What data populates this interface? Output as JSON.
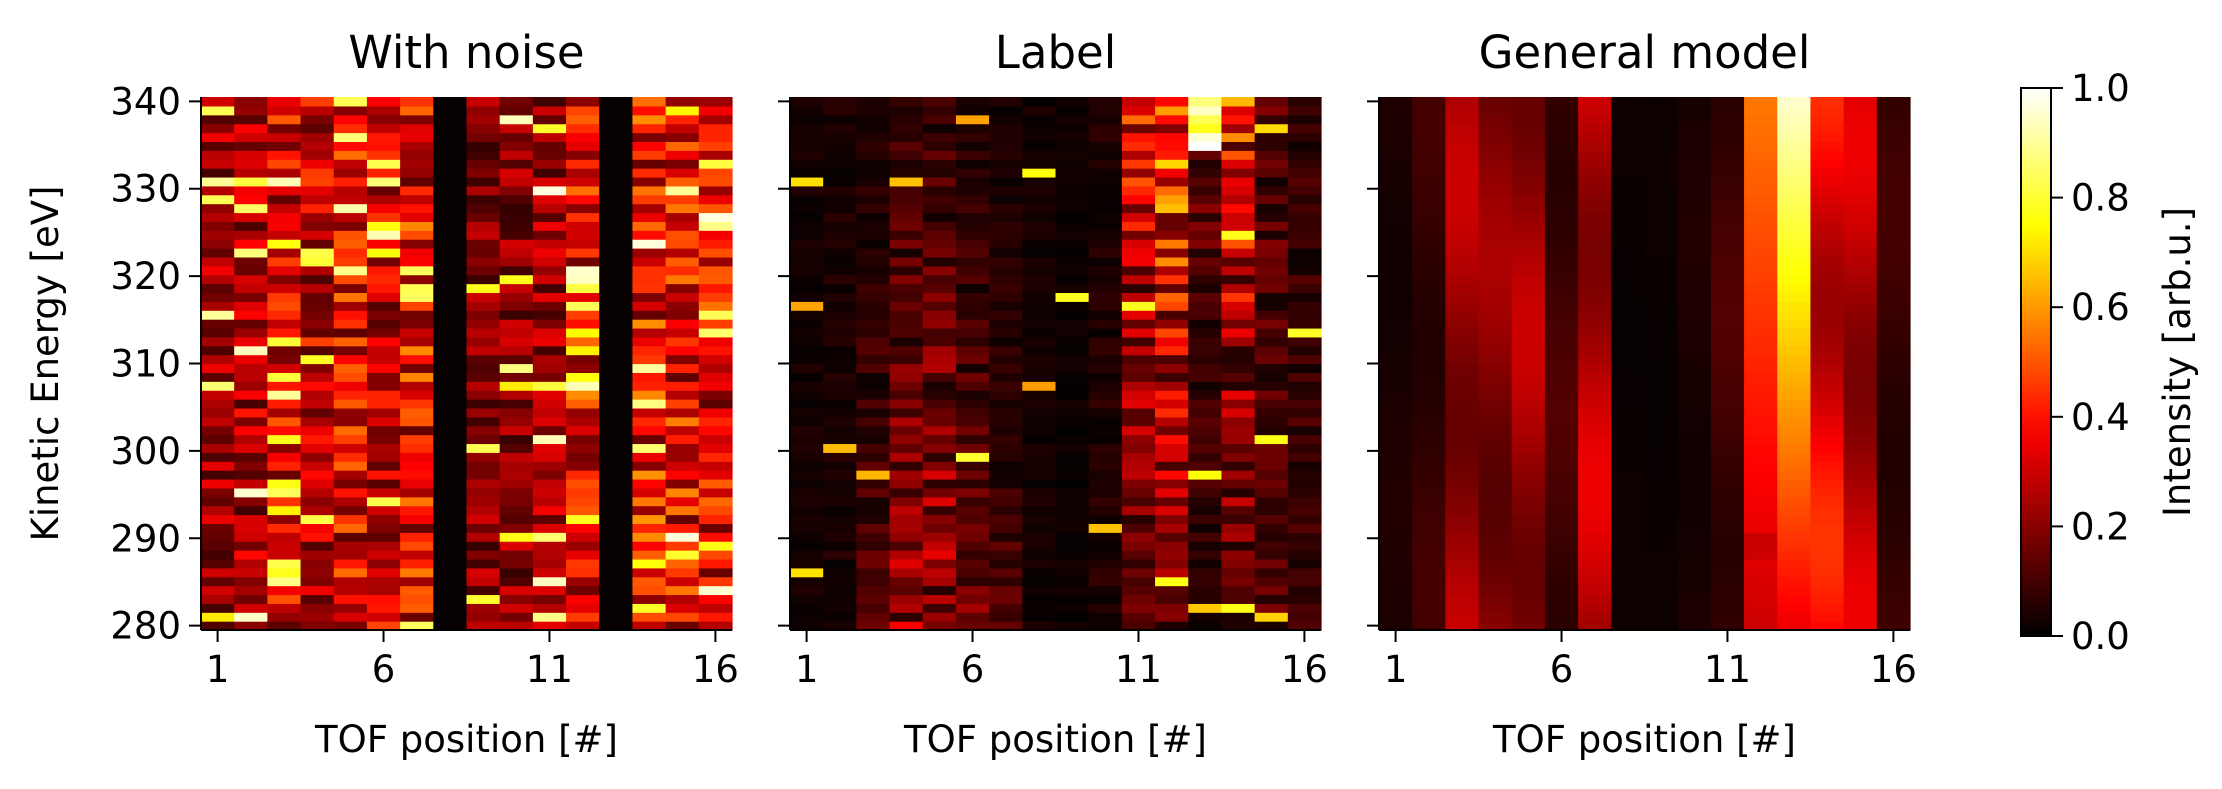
{
  "chart_data": {
    "type": "heatmap",
    "colormap": "hot",
    "panels": [
      {
        "title": "With noise",
        "xlabel": "TOF position [#]",
        "ylabel": "Kinetic Energy [eV]",
        "mode": "noise"
      },
      {
        "title": "Label",
        "xlabel": "TOF position [#]",
        "ylabel": "",
        "mode": "label"
      },
      {
        "title": "General model",
        "xlabel": "TOF position [#]",
        "ylabel": "",
        "mode": "model"
      }
    ],
    "x_ticks": [
      "1",
      "6",
      "11",
      "16"
    ],
    "y_ticks": [
      "280",
      "290",
      "300",
      "310",
      "320",
      "330",
      "340"
    ],
    "xlim": [
      0.5,
      16.5
    ],
    "ylim": [
      279.5,
      340.5
    ],
    "n_tof": 16,
    "n_energy": 60,
    "intensity_range": [
      0,
      1
    ],
    "colorbar": {
      "label": "Intensity [arb.u.]",
      "ticks": [
        "0.0",
        "0.2",
        "0.4",
        "0.6",
        "0.8",
        "1.0"
      ],
      "range": [
        0,
        1
      ]
    },
    "column_profiles": {
      "noise_level": [
        0.25,
        0.28,
        0.35,
        0.33,
        0.38,
        0.33,
        0.4,
        0.0,
        0.22,
        0.22,
        0.25,
        0.4,
        0.0,
        0.42,
        0.4,
        0.38
      ],
      "label_level": [
        0.03,
        0.04,
        0.1,
        0.18,
        0.2,
        0.12,
        0.08,
        0.03,
        0.02,
        0.05,
        0.22,
        0.3,
        0.1,
        0.25,
        0.12,
        0.08
      ],
      "model_level": [
        0.05,
        0.1,
        0.3,
        0.25,
        0.3,
        0.12,
        0.35,
        0.02,
        0.02,
        0.05,
        0.12,
        0.5,
        0.65,
        0.45,
        0.35,
        0.1
      ]
    }
  }
}
